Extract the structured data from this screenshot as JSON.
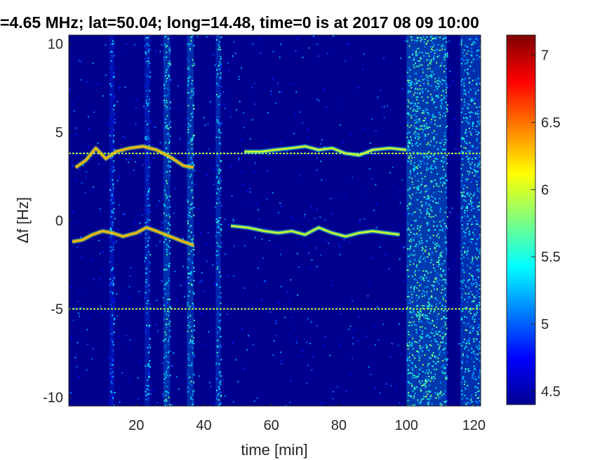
{
  "chart_data": {
    "type": "heatmap",
    "title": "=4.65 MHz;  lat=50.04; long=14.48, time=0 is at 2017 08 09 10:00",
    "xlabel": "time [min]",
    "ylabel": "Δf [Hz]",
    "xlim": [
      0,
      122
    ],
    "ylim": [
      -10.5,
      10.5
    ],
    "x_ticks": [
      20,
      40,
      60,
      80,
      100,
      120
    ],
    "y_ticks": [
      -10,
      -5,
      0,
      5,
      10
    ],
    "x_tick_labels": [
      "20",
      "40",
      "60",
      "80",
      "100",
      "120"
    ],
    "y_tick_labels": [
      "-10",
      "-5",
      "0",
      "5",
      "10"
    ],
    "colorbar": {
      "range": [
        4.4,
        7.15
      ],
      "ticks": [
        4.5,
        5,
        5.5,
        6,
        6.5,
        7
      ],
      "tick_labels": [
        "4.5",
        "5",
        "5.5",
        "6",
        "6.5",
        "7"
      ],
      "colormap": "jet"
    },
    "colors": {
      "background": "#00008f",
      "low": "#0000ff",
      "mid": "#00ffff",
      "high": "#ffff00",
      "peak": "#ff0000"
    },
    "horizontal_lines": [
      {
        "y": 3.8,
        "x_range": [
          0,
          122
        ],
        "level": 5.9
      },
      {
        "y": -5.0,
        "x_range": [
          0,
          122
        ],
        "level": 5.9
      }
    ],
    "noise_bands": [
      {
        "x_range": [
          12,
          13.5
        ],
        "level": 4.9
      },
      {
        "x_range": [
          22.5,
          24
        ],
        "level": 5.0
      },
      {
        "x_range": [
          28,
          30
        ],
        "level": 5.2
      },
      {
        "x_range": [
          35,
          37
        ],
        "level": 5.2
      },
      {
        "x_range": [
          43.5,
          45
        ],
        "level": 5.1
      },
      {
        "x_range": [
          100,
          112
        ],
        "level": 5.3
      },
      {
        "x_range": [
          116,
          122
        ],
        "level": 5.2
      }
    ],
    "traces": [
      {
        "name": "upper_echo",
        "points": [
          [
            2,
            3.0
          ],
          [
            5,
            3.4
          ],
          [
            8,
            4.1
          ],
          [
            11,
            3.5
          ],
          [
            14,
            3.9
          ],
          [
            18,
            4.1
          ],
          [
            22,
            4.2
          ],
          [
            26,
            4.0
          ],
          [
            30,
            3.6
          ],
          [
            34,
            3.1
          ],
          [
            37,
            3.0
          ]
        ],
        "level": 6.3
      },
      {
        "name": "upper_echo_2",
        "points": [
          [
            52,
            3.9
          ],
          [
            57,
            3.9
          ],
          [
            61,
            4.0
          ],
          [
            66,
            4.1
          ],
          [
            70,
            4.2
          ],
          [
            74,
            4.0
          ],
          [
            78,
            4.1
          ],
          [
            82,
            3.8
          ],
          [
            86,
            3.7
          ],
          [
            90,
            4.0
          ],
          [
            95,
            4.1
          ],
          [
            100,
            4.0
          ]
        ],
        "level": 6.0
      },
      {
        "name": "lower_echo",
        "points": [
          [
            1,
            -1.2
          ],
          [
            4,
            -1.1
          ],
          [
            7,
            -0.8
          ],
          [
            10,
            -0.6
          ],
          [
            13,
            -0.7
          ],
          [
            16,
            -0.9
          ],
          [
            20,
            -0.7
          ],
          [
            23,
            -0.4
          ],
          [
            26,
            -0.6
          ],
          [
            30,
            -0.9
          ],
          [
            34,
            -1.2
          ],
          [
            37,
            -1.4
          ]
        ],
        "level": 6.3
      },
      {
        "name": "lower_echo_2",
        "points": [
          [
            48,
            -0.3
          ],
          [
            53,
            -0.4
          ],
          [
            58,
            -0.6
          ],
          [
            62,
            -0.7
          ],
          [
            66,
            -0.6
          ],
          [
            70,
            -0.8
          ],
          [
            74,
            -0.4
          ],
          [
            78,
            -0.7
          ],
          [
            82,
            -0.9
          ],
          [
            86,
            -0.7
          ],
          [
            90,
            -0.6
          ],
          [
            94,
            -0.7
          ],
          [
            98,
            -0.8
          ]
        ],
        "level": 6.0
      }
    ]
  }
}
